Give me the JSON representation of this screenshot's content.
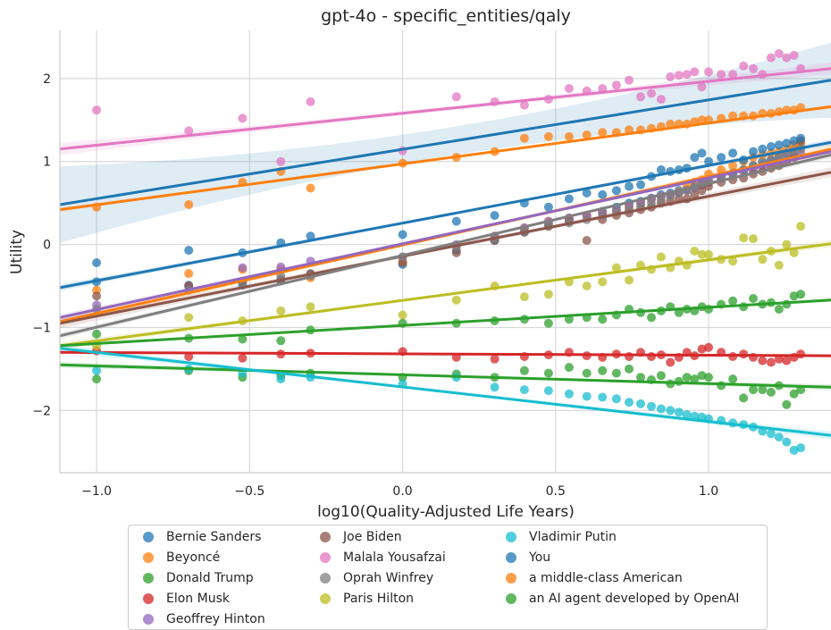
{
  "chart_data": {
    "type": "scatter",
    "title": "gpt-4o - specific_entities/qaly",
    "xlabel": "log10(Quality-Adjusted Life Years)",
    "ylabel": "Utility",
    "xlim": [
      -1.12,
      1.4
    ],
    "ylim": [
      -2.75,
      2.58
    ],
    "xticks": [
      -1.0,
      -0.5,
      0.0,
      0.5,
      1.0
    ],
    "xtick_labels": [
      "−1.0",
      "−0.5",
      "0.0",
      "0.5",
      "1.0"
    ],
    "yticks": [
      -2,
      -1,
      0,
      1,
      2
    ],
    "ytick_labels": [
      "−2",
      "−1",
      "0",
      "1",
      "2"
    ],
    "grid": true,
    "legend_position": "bottom-center",
    "x": [
      -1.0,
      -0.699,
      -0.523,
      -0.398,
      -0.301,
      0.0,
      0.176,
      0.301,
      0.398,
      0.477,
      0.544,
      0.602,
      0.653,
      0.699,
      0.74,
      0.778,
      0.813,
      0.845,
      0.875,
      0.903,
      0.929,
      0.954,
      0.978,
      1.0,
      1.041,
      1.079,
      1.114,
      1.146,
      1.176,
      1.204,
      1.23,
      1.255,
      1.279,
      1.301
    ],
    "series": [
      {
        "name": "Bernie Sanders",
        "color": "#1f77b4",
        "line": [
          0.48,
          1.98
        ],
        "values": [
          -0.45,
          -0.49,
          -0.49,
          -0.44,
          -0.36,
          -0.24,
          -0.07,
          0.05,
          0.15,
          0.25,
          0.3,
          0.35,
          0.4,
          0.45,
          0.5,
          0.52,
          0.56,
          0.6,
          0.62,
          0.65,
          0.66,
          0.7,
          0.72,
          0.75,
          0.8,
          0.85,
          0.9,
          0.95,
          1.0,
          1.02,
          1.05,
          1.1,
          1.15,
          1.18
        ]
      },
      {
        "name": "Beyoncé",
        "color": "#ff7f0e",
        "line": [
          -0.93,
          1.15
        ],
        "values": [
          -0.55,
          -0.35,
          -0.3,
          -0.3,
          -0.4,
          -0.2,
          -0.02,
          0.1,
          0.2,
          0.28,
          0.32,
          0.35,
          0.38,
          0.4,
          0.45,
          0.5,
          0.55,
          0.58,
          0.6,
          0.63,
          0.7,
          0.75,
          0.78,
          0.85,
          0.9,
          0.95,
          1.0,
          1.05,
          1.08,
          1.1,
          1.12,
          1.15,
          1.2,
          1.22
        ]
      },
      {
        "name": "Donald Trump",
        "color": "#2ca02c",
        "line": [
          -1.45,
          -1.72
        ],
        "values": [
          -1.62,
          -1.52,
          -1.6,
          -1.58,
          -1.55,
          -1.6,
          -1.56,
          -1.6,
          -1.52,
          -1.55,
          -1.48,
          -1.55,
          -1.52,
          -1.55,
          -1.5,
          -1.6,
          -1.63,
          -1.58,
          -1.68,
          -1.65,
          -1.6,
          -1.62,
          -1.58,
          -1.6,
          -1.7,
          -1.62,
          -1.85,
          -1.75,
          -1.75,
          -1.78,
          -1.7,
          -1.93,
          -1.8,
          -1.75
        ]
      },
      {
        "name": "Elon Musk",
        "color": "#d62728",
        "line": [
          -1.3,
          -1.34
        ],
        "values": [
          -1.28,
          -1.35,
          -1.37,
          -1.32,
          -1.31,
          -1.29,
          -1.36,
          -1.38,
          -1.35,
          -1.33,
          -1.3,
          -1.34,
          -1.36,
          -1.32,
          -1.35,
          -1.3,
          -1.35,
          -1.33,
          -1.42,
          -1.36,
          -1.3,
          -1.34,
          -1.26,
          -1.24,
          -1.3,
          -1.35,
          -1.32,
          -1.36,
          -1.4,
          -1.42,
          -1.38,
          -1.4,
          -1.36,
          -1.32
        ]
      },
      {
        "name": "Geoffrey Hinton",
        "color": "#9467bd",
        "line": [
          -0.88,
          1.12
        ],
        "values": [
          -0.73,
          -0.5,
          -0.28,
          -0.27,
          -0.2,
          -0.15,
          0.0,
          0.1,
          0.2,
          0.28,
          0.32,
          0.35,
          0.38,
          0.42,
          0.47,
          0.5,
          0.55,
          0.58,
          0.6,
          0.62,
          0.65,
          0.68,
          0.72,
          0.75,
          0.8,
          0.85,
          0.88,
          0.9,
          0.95,
          1.0,
          1.02,
          1.05,
          1.08,
          1.1
        ]
      },
      {
        "name": "Joe Biden",
        "color": "#8c564b",
        "line": [
          -0.95,
          0.87
        ],
        "values": [
          -0.62,
          -0.5,
          -0.45,
          -0.42,
          -0.35,
          -0.22,
          -0.1,
          0.05,
          0.15,
          0.22,
          0.28,
          0.05,
          0.3,
          0.35,
          0.38,
          0.42,
          0.45,
          0.5,
          0.52,
          0.55,
          0.55,
          0.6,
          0.65,
          0.7,
          0.75,
          0.78,
          0.8,
          0.85,
          0.88,
          0.92,
          0.95,
          1.0,
          1.05,
          1.25
        ]
      },
      {
        "name": "Malala Yousafzai",
        "color": "#e377c2",
        "line": [
          1.15,
          2.12
        ],
        "values": [
          1.62,
          1.37,
          1.52,
          1.0,
          1.72,
          1.13,
          1.78,
          1.72,
          1.68,
          1.75,
          1.88,
          1.85,
          1.88,
          1.92,
          1.98,
          1.78,
          1.82,
          1.75,
          2.02,
          2.04,
          2.05,
          2.08,
          1.9,
          2.08,
          2.05,
          2.05,
          2.15,
          2.12,
          2.05,
          2.25,
          2.3,
          2.25,
          2.28,
          2.12
        ]
      },
      {
        "name": "Oprah Winfrey",
        "color": "#7f7f7f",
        "line": [
          -1.1,
          1.08
        ],
        "values": [
          -0.78,
          -0.55,
          -0.45,
          -0.38,
          -0.38,
          -0.15,
          -0.02,
          0.07,
          0.16,
          0.22,
          0.26,
          0.3,
          0.35,
          0.4,
          0.42,
          0.46,
          0.5,
          0.54,
          0.58,
          0.62,
          0.65,
          0.7,
          0.74,
          0.78,
          0.82,
          0.86,
          0.9,
          0.95,
          0.98,
          1.02,
          1.06,
          1.1,
          1.12,
          1.15
        ]
      },
      {
        "name": "Paris Hilton",
        "color": "#bcbd22",
        "line": [
          -1.22,
          0.01
        ],
        "values": [
          -1.22,
          -0.88,
          -0.92,
          -0.8,
          -0.75,
          -0.85,
          -0.67,
          -0.5,
          -0.63,
          -0.6,
          -0.45,
          -0.5,
          -0.45,
          -0.28,
          -0.43,
          -0.25,
          -0.3,
          -0.15,
          -0.28,
          -0.2,
          -0.25,
          -0.08,
          -0.12,
          -0.12,
          -0.18,
          -0.2,
          0.08,
          0.07,
          -0.18,
          -0.08,
          -0.25,
          0.0,
          -0.1,
          0.22
        ]
      },
      {
        "name": "Vladimir Putin",
        "color": "#17becf",
        "line": [
          -1.25,
          -2.3
        ],
        "values": [
          -1.52,
          -1.5,
          -1.55,
          -1.62,
          -1.6,
          -1.68,
          -1.6,
          -1.72,
          -1.75,
          -1.76,
          -1.8,
          -1.83,
          -1.84,
          -1.86,
          -1.9,
          -1.92,
          -1.95,
          -1.98,
          -2.0,
          -2.02,
          -2.05,
          -2.07,
          -2.08,
          -2.1,
          -2.12,
          -2.15,
          -2.17,
          -2.2,
          -2.25,
          -2.28,
          -2.32,
          -2.38,
          -2.48,
          -2.45
        ]
      },
      {
        "name": "You",
        "color": "#1f77b4",
        "line": [
          -0.52,
          1.23
        ],
        "values": [
          -0.22,
          -0.07,
          -0.1,
          0.02,
          0.1,
          0.12,
          0.28,
          0.35,
          0.5,
          0.45,
          0.55,
          0.62,
          0.6,
          0.65,
          0.7,
          0.72,
          0.82,
          0.9,
          0.88,
          0.9,
          0.92,
          1.05,
          1.1,
          1.0,
          1.05,
          1.1,
          1.02,
          1.12,
          1.15,
          1.18,
          1.2,
          1.22,
          1.25,
          1.28
        ]
      },
      {
        "name": "a middle-class American",
        "color": "#ff7f0e",
        "line": [
          0.42,
          1.66
        ],
        "values": [
          0.45,
          0.48,
          0.75,
          0.88,
          0.68,
          0.98,
          1.05,
          1.12,
          1.28,
          1.3,
          1.3,
          1.32,
          1.35,
          1.35,
          1.38,
          1.38,
          1.4,
          1.42,
          1.45,
          1.45,
          1.45,
          1.48,
          1.5,
          1.5,
          1.52,
          1.55,
          1.55,
          1.55,
          1.58,
          1.58,
          1.6,
          1.62,
          1.62,
          1.65
        ]
      },
      {
        "name": "an AI agent developed by OpenAI",
        "color": "#2ca02c",
        "line": [
          -1.22,
          -0.67
        ],
        "values": [
          -1.08,
          -1.13,
          -1.14,
          -1.16,
          -1.03,
          -0.95,
          -0.95,
          -0.92,
          -0.9,
          -0.95,
          -0.9,
          -0.88,
          -0.9,
          -0.85,
          -0.78,
          -0.82,
          -0.88,
          -0.8,
          -0.75,
          -0.82,
          -0.78,
          -0.8,
          -0.75,
          -0.78,
          -0.72,
          -0.68,
          -0.75,
          -0.65,
          -0.72,
          -0.7,
          -0.78,
          -0.72,
          -0.62,
          -0.6
        ]
      }
    ]
  }
}
